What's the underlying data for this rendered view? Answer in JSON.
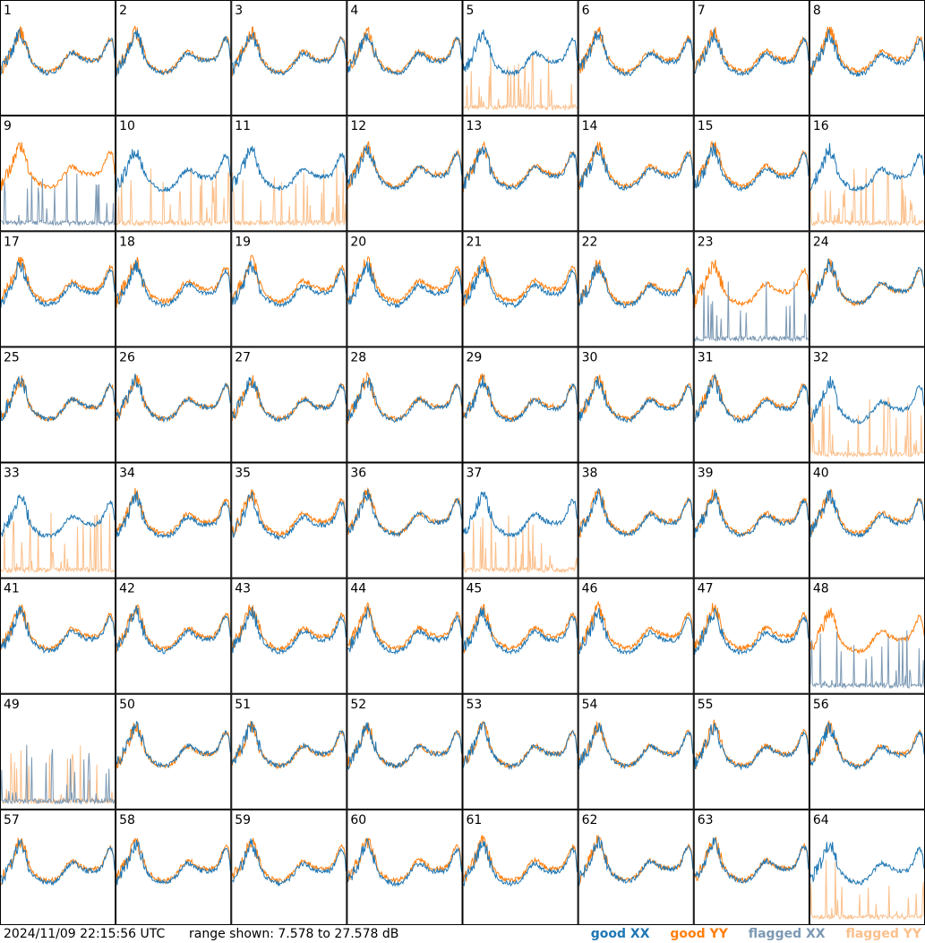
{
  "footer": {
    "timestamp": "2024/11/09 22:15:56 UTC",
    "range": "range shown: 7.578 to 27.578 dB"
  },
  "legend": [
    {
      "label": "good XX",
      "color": "#1f77b4"
    },
    {
      "label": "good YY",
      "color": "#ff7f0e"
    },
    {
      "label": "flagged XX",
      "color": "#7c99b4"
    },
    {
      "label": "flagged YY",
      "color": "#fbc08c"
    }
  ],
  "colors": {
    "good_xx": "#1f77b4",
    "good_yy": "#ff7f0e",
    "flagged_xx": "#7c99b4",
    "flagged_yy": "#fbc08c"
  },
  "chart_data": {
    "type": "line",
    "ylim": [
      7.578,
      27.578
    ],
    "y_unit": "dB",
    "panel_labels": [
      "1",
      "2",
      "3",
      "4",
      "5",
      "6",
      "7",
      "8",
      "9",
      "10",
      "11",
      "12",
      "13",
      "14",
      "15",
      "16",
      "17",
      "18",
      "19",
      "20",
      "21",
      "22",
      "23",
      "24",
      "25",
      "26",
      "27",
      "28",
      "29",
      "30",
      "31",
      "32",
      "33",
      "34",
      "35",
      "36",
      "37",
      "38",
      "39",
      "40",
      "41",
      "42",
      "43",
      "44",
      "45",
      "46",
      "47",
      "48",
      "49",
      "50",
      "51",
      "52",
      "53",
      "54",
      "55",
      "56",
      "57",
      "58",
      "59",
      "60",
      "61",
      "62",
      "63",
      "64"
    ],
    "panel_status": {
      "xx": [
        "g",
        "g",
        "g",
        "g",
        "g",
        "g",
        "g",
        "g",
        "f",
        "g",
        "g",
        "g",
        "g",
        "g",
        "g",
        "g",
        "g",
        "g",
        "g",
        "g",
        "g",
        "g",
        "f",
        "g",
        "g",
        "g",
        "g",
        "g",
        "g",
        "g",
        "g",
        "g",
        "g",
        "g",
        "g",
        "g",
        "g",
        "g",
        "g",
        "g",
        "g",
        "g",
        "g",
        "g",
        "g",
        "g",
        "g",
        "f",
        "f",
        "g",
        "g",
        "g",
        "g",
        "g",
        "g",
        "g",
        "g",
        "g",
        "g",
        "g",
        "g",
        "g",
        "g",
        "g"
      ],
      "yy": [
        "g",
        "g",
        "g",
        "g",
        "f",
        "g",
        "g",
        "g",
        "g",
        "f",
        "f",
        "g",
        "g",
        "g",
        "g",
        "f",
        "g",
        "g",
        "g",
        "g",
        "g",
        "g",
        "g",
        "g",
        "g",
        "g",
        "g",
        "g",
        "g",
        "g",
        "g",
        "f",
        "f",
        "g",
        "g",
        "g",
        "f",
        "g",
        "g",
        "g",
        "g",
        "g",
        "g",
        "g",
        "g",
        "g",
        "g",
        "g",
        "f",
        "g",
        "g",
        "g",
        "g",
        "g",
        "g",
        "g",
        "g",
        "g",
        "g",
        "g",
        "g",
        "g",
        "g",
        "f"
      ]
    },
    "series_names": [
      "XX",
      "YY"
    ]
  }
}
